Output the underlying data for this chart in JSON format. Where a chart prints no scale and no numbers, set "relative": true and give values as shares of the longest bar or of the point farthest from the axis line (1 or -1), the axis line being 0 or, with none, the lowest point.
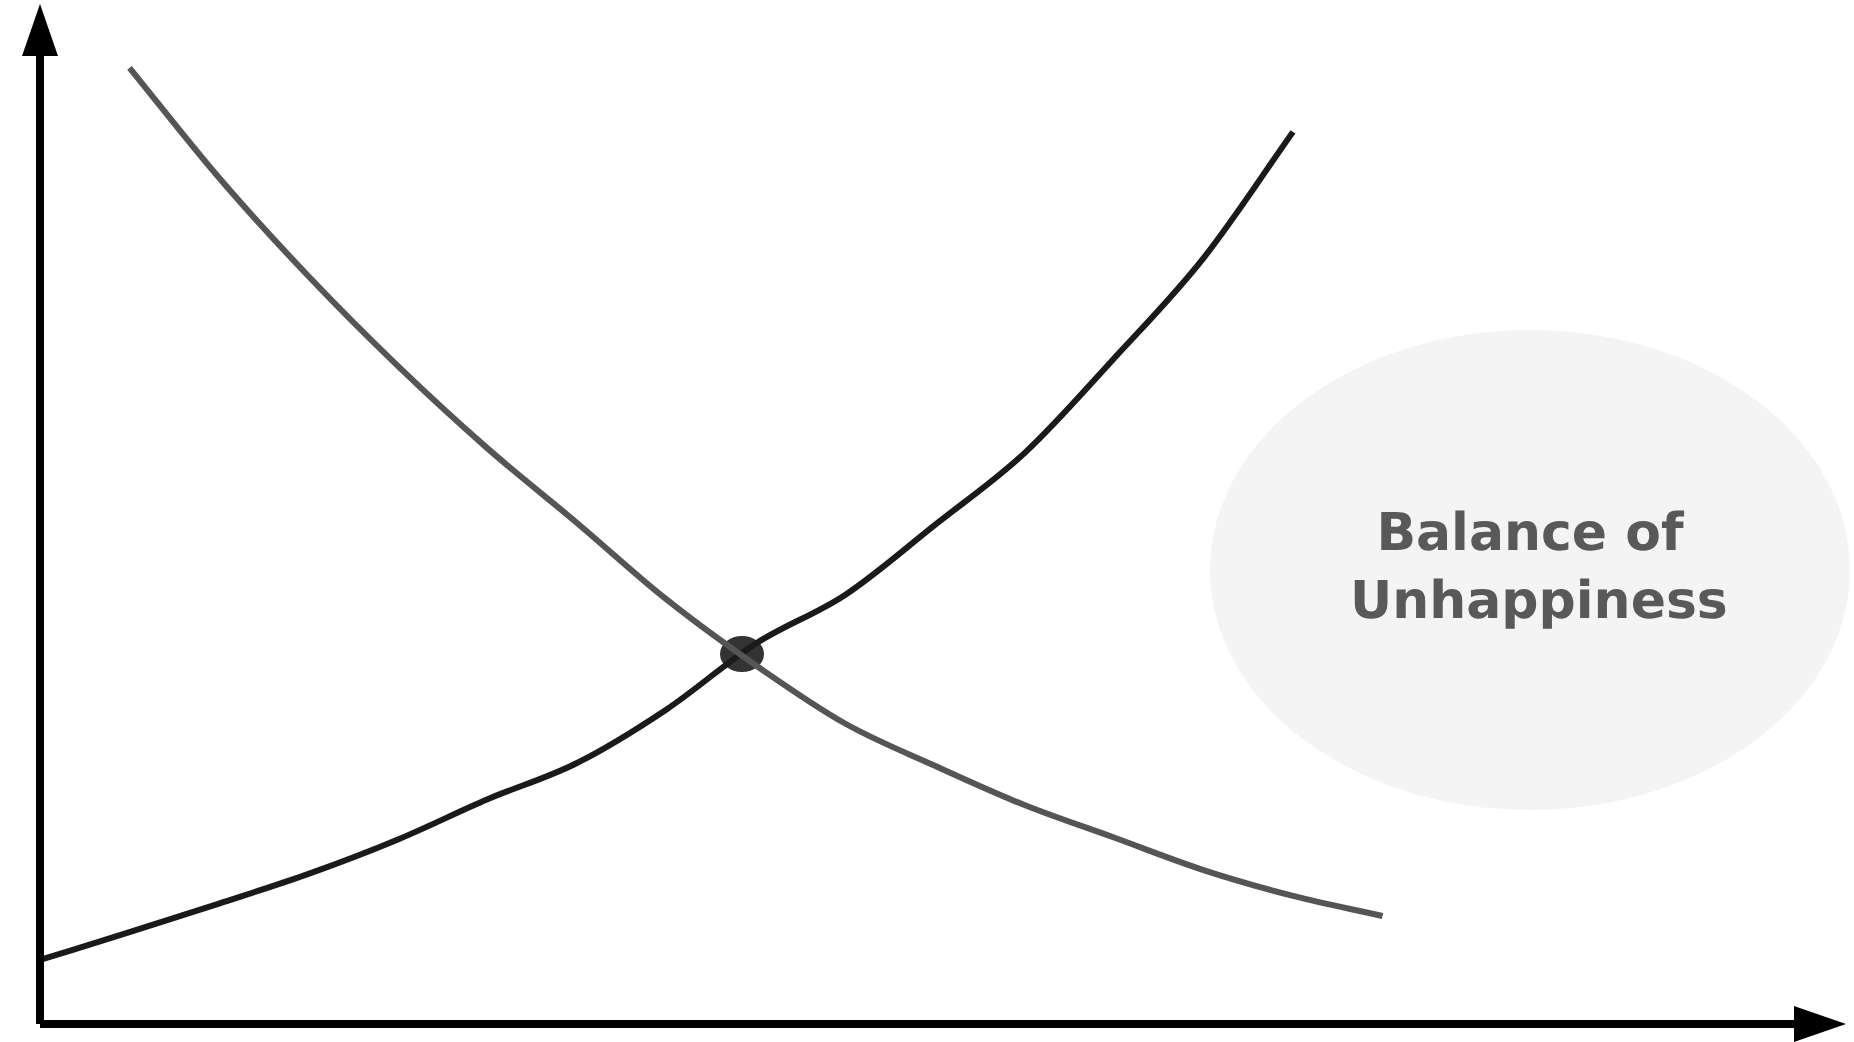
{
  "chart_data": {
    "type": "line",
    "relative": true,
    "legend": false,
    "marker": "none",
    "line_style": "solid",
    "annotations": [
      "Balance of Unhappiness"
    ],
    "categories": [
      null,
      null,
      null,
      null,
      null,
      null,
      null,
      null,
      null,
      null,
      null,
      null,
      null,
      null,
      null,
      null,
      null,
      null,
      null,
      null,
      null
    ],
    "series": [
      {
        "color": "#555555",
        "values": [
          null,
          1,
          0.885,
          0.782,
          0.688,
          0.602,
          0.524,
          0.444,
          0.375,
          0.314,
          0.27,
          0.229,
          0.195,
          0.161,
          0.134,
          0.113,
          null,
          null,
          null,
          null,
          null
        ]
      },
      {
        "color": "#1a1a1a",
        "values": [
          0.067,
          0.096,
          0.126,
          0.157,
          0.193,
          0.235,
          0.273,
          0.329,
          0.398,
          0.449,
          0.522,
          0.597,
          0.696,
          0.801,
          0.933,
          null,
          null,
          null,
          null,
          null,
          null
        ]
      }
    ]
  }
}
